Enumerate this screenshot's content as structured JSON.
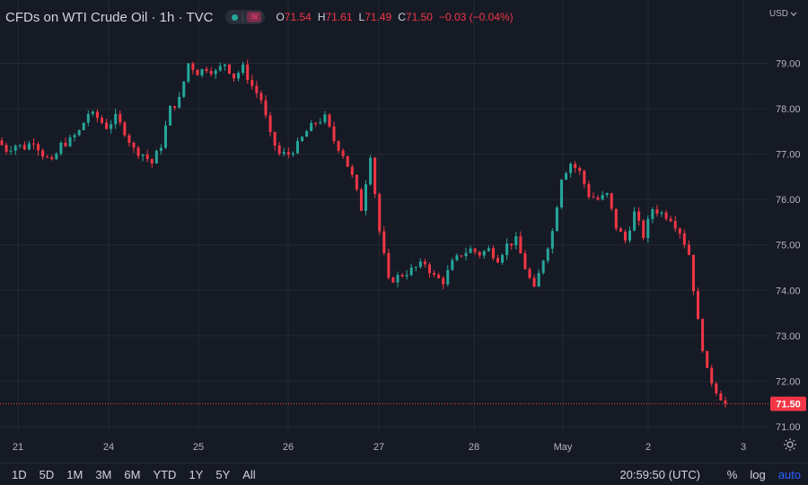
{
  "legend": {
    "title": "CFDs on WTI Crude Oil · 1h · TVC",
    "ohlc": [
      {
        "k": "O",
        "v": "71.54"
      },
      {
        "k": "H",
        "v": "71.61"
      },
      {
        "k": "L",
        "v": "71.49"
      },
      {
        "k": "C",
        "v": "71.50"
      },
      {
        "k": "",
        "v": "−0.03 (−0.04%)"
      }
    ],
    "status_icon": "live-dot-icon",
    "indicator_icon": "wave-icon"
  },
  "currency": "USD",
  "bottom": {
    "ranges": [
      "1D",
      "5D",
      "1M",
      "3M",
      "6M",
      "YTD",
      "1Y",
      "5Y",
      "All"
    ],
    "clock": "20:59:50 (UTC)",
    "controls": [
      "%",
      "log",
      "auto"
    ]
  },
  "colors": {
    "up": "#26a69a",
    "down": "#f23645",
    "background": "#161a25",
    "grid": "#242834",
    "axis_text": "#b2b5be",
    "price_label_bg": "#f23645"
  },
  "chart_data": {
    "type": "candlestick",
    "symbol": "CFDs on WTI Crude Oil",
    "interval": "1h",
    "y_ticks": [
      71,
      72,
      73,
      74,
      75,
      76,
      77,
      78,
      79
    ],
    "ylim": [
      70.9,
      79.8
    ],
    "x_ticks": [
      "21",
      "24",
      "25",
      "26",
      "27",
      "28",
      "May",
      "2",
      "3"
    ],
    "last_price_label": "71.50",
    "last_price": 71.5,
    "grid": true,
    "ohlc_path": [
      77.3,
      77.1,
      77.2,
      77.15,
      77.3,
      77.0,
      76.8,
      77.2,
      77.3,
      77.5,
      77.9,
      77.8,
      77.6,
      77.8,
      77.5,
      77.1,
      77.0,
      76.8,
      77.2,
      78.0,
      78.2,
      79.0,
      78.8,
      78.9,
      78.8,
      79.0,
      78.7,
      78.9,
      78.5,
      78.2,
      77.4,
      77.0,
      77.0,
      77.2,
      77.5,
      77.7,
      77.8,
      77.3,
      77.0,
      76.5,
      75.8,
      77.0,
      75.3,
      74.2,
      74.3,
      74.4,
      74.5,
      74.6,
      74.3,
      74.2,
      74.6,
      74.8,
      74.9,
      74.8,
      74.9,
      74.7,
      75.0,
      75.1,
      74.5,
      74.0,
      74.7,
      75.3,
      76.5,
      76.8,
      76.6,
      76.1,
      76.0,
      76.1,
      75.4,
      75.1,
      75.7,
      75.2,
      75.8,
      75.7,
      75.6,
      75.3,
      74.8,
      73.3,
      72.2,
      71.8,
      71.5
    ],
    "ohlc_start": "21 (Apr) 00:00 UTC",
    "ohlc_end": "2 (May) 20:00 UTC"
  }
}
